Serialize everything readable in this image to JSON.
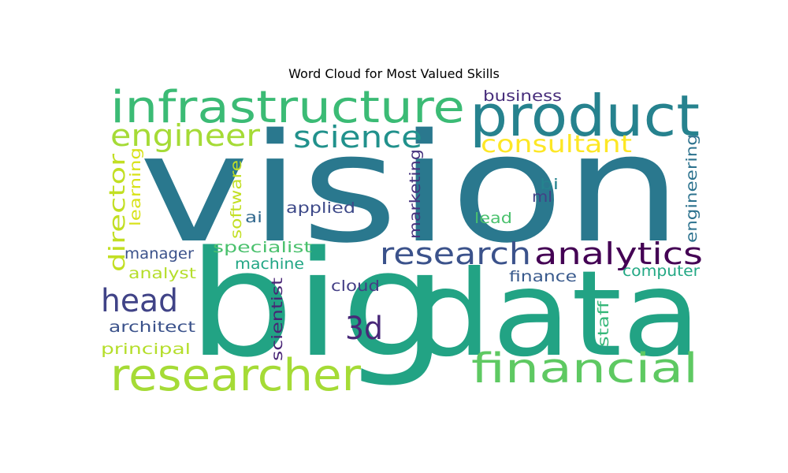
{
  "chart_data": {
    "type": "wordcloud",
    "title": "Word Cloud for Most Valued Skills",
    "colormap": "viridis",
    "background": "#ffffff",
    "words": [
      {
        "text": "vision",
        "weight": 1.0,
        "color": "#2a788e"
      },
      {
        "text": "big",
        "weight": 0.9,
        "color": "#22a384"
      },
      {
        "text": "data",
        "weight": 0.8,
        "color": "#22a384"
      },
      {
        "text": "product",
        "weight": 0.4,
        "color": "#26828e"
      },
      {
        "text": "infrastructure",
        "weight": 0.33,
        "color": "#3bbb75"
      },
      {
        "text": "researcher",
        "weight": 0.33,
        "color": "#a5db36"
      },
      {
        "text": "financial",
        "weight": 0.31,
        "color": "#5ec962"
      },
      {
        "text": "head",
        "weight": 0.22,
        "color": "#404387"
      },
      {
        "text": "3d",
        "weight": 0.22,
        "color": "#482878"
      },
      {
        "text": "research",
        "weight": 0.21,
        "color": "#3b528b"
      },
      {
        "text": "analytics",
        "weight": 0.21,
        "color": "#440154"
      },
      {
        "text": "engineer",
        "weight": 0.2,
        "color": "#a5db36"
      },
      {
        "text": "science",
        "weight": 0.2,
        "color": "#21918c"
      },
      {
        "text": "consultant",
        "weight": 0.16,
        "color": "#fde725"
      },
      {
        "text": "director",
        "weight": 0.14,
        "color": "#c2df23"
      },
      {
        "text": "business",
        "weight": 0.1,
        "color": "#472d7b"
      },
      {
        "text": "applied",
        "weight": 0.1,
        "color": "#3e4a89"
      },
      {
        "text": "ai",
        "weight": 0.1,
        "color": "#31688e"
      },
      {
        "text": "bi",
        "weight": 0.1,
        "color": "#25838e"
      },
      {
        "text": "ml",
        "weight": 0.1,
        "color": "#424086"
      },
      {
        "text": "lead",
        "weight": 0.1,
        "color": "#4ac16d"
      },
      {
        "text": "manager",
        "weight": 0.09,
        "color": "#3b528b"
      },
      {
        "text": "analyst",
        "weight": 0.09,
        "color": "#b5de2b"
      },
      {
        "text": "specialist",
        "weight": 0.09,
        "color": "#4ac16d"
      },
      {
        "text": "machine",
        "weight": 0.09,
        "color": "#21a685"
      },
      {
        "text": "cloud",
        "weight": 0.09,
        "color": "#433e85"
      },
      {
        "text": "finance",
        "weight": 0.09,
        "color": "#38598c"
      },
      {
        "text": "computer",
        "weight": 0.09,
        "color": "#22a884"
      },
      {
        "text": "architect",
        "weight": 0.09,
        "color": "#3b528b"
      },
      {
        "text": "principal",
        "weight": 0.09,
        "color": "#b5de2b"
      },
      {
        "text": "learning",
        "weight": 0.08,
        "color": "#d8e219"
      },
      {
        "text": "software",
        "weight": 0.08,
        "color": "#c2df23"
      },
      {
        "text": "marketing",
        "weight": 0.08,
        "color": "#46327e"
      },
      {
        "text": "engineering",
        "weight": 0.08,
        "color": "#2c728e"
      },
      {
        "text": "scientist",
        "weight": 0.08,
        "color": "#482475"
      },
      {
        "text": "staff",
        "weight": 0.08,
        "color": "#35b779"
      }
    ]
  }
}
